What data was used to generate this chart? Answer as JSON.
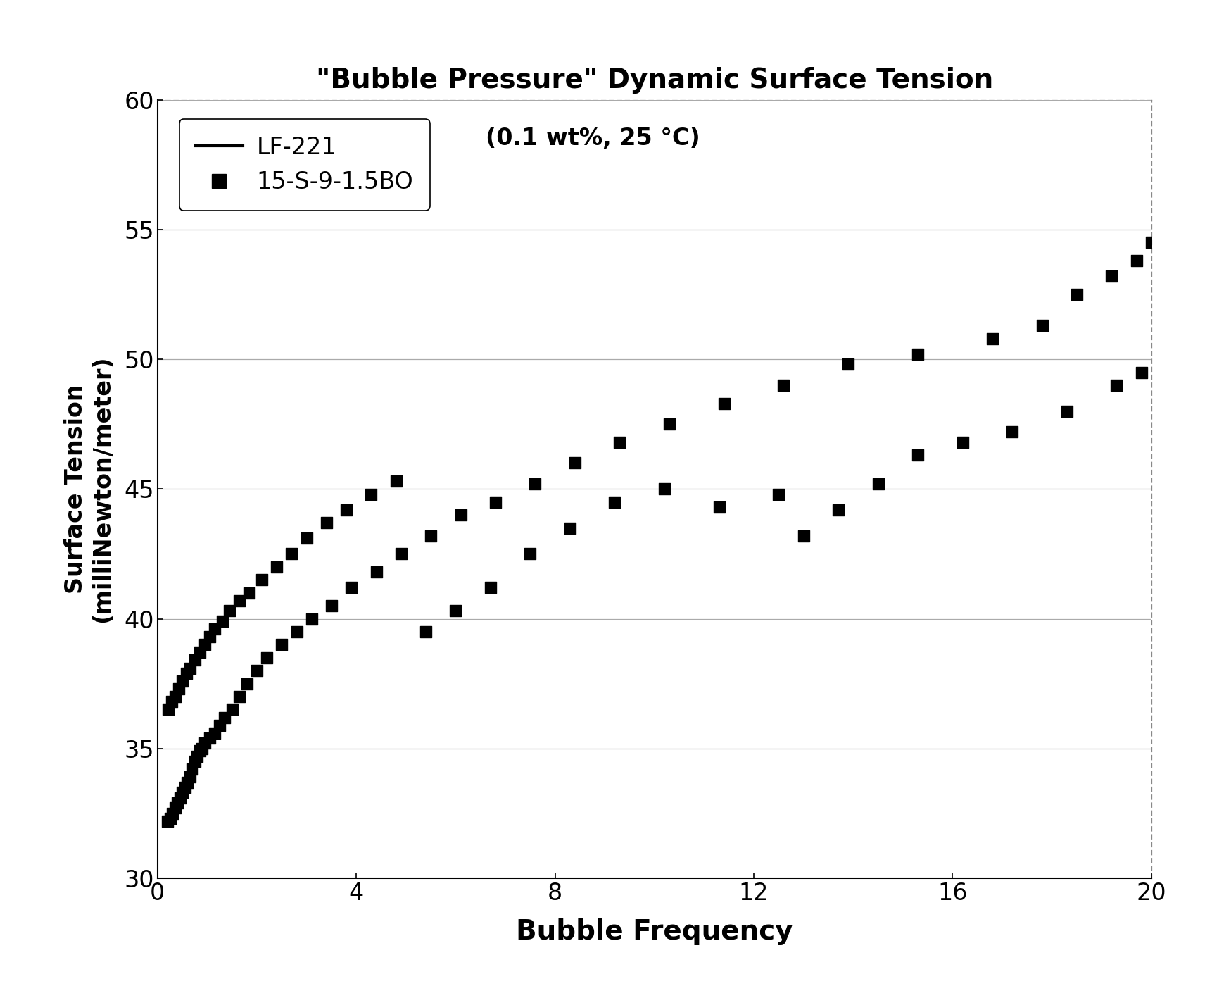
{
  "title": "\"Bubble Pressure\" Dynamic Surface Tension",
  "subtitle": "(0.1 wt%, 25 °C)",
  "xlabel": "Bubble Frequency",
  "ylabel": "Surface Tension\n(milliNewton/meter)",
  "xlim": [
    0,
    20
  ],
  "ylim": [
    30,
    60
  ],
  "yticks": [
    30,
    35,
    40,
    45,
    50,
    55,
    60
  ],
  "xticks": [
    0,
    4,
    8,
    12,
    16,
    20
  ],
  "series1_label": "LF-221",
  "series2_label": "15-S-9-1.5BO",
  "lf221_x": [
    0.2,
    0.25,
    0.3,
    0.35,
    0.4,
    0.45,
    0.5,
    0.55,
    0.6,
    0.65,
    0.7,
    0.75,
    0.8,
    0.85,
    0.9,
    0.95,
    1.05,
    1.15,
    1.25,
    1.35,
    1.5,
    1.65,
    1.8,
    2.0,
    2.2,
    2.5,
    2.8,
    3.1,
    3.5,
    3.9,
    4.4,
    4.9,
    5.5,
    6.1,
    6.8,
    7.6,
    8.4,
    9.3,
    10.3,
    11.4,
    12.6,
    13.9,
    15.3,
    16.8,
    17.8,
    18.5,
    19.2,
    19.7,
    20.0
  ],
  "lf221_y": [
    32.2,
    32.3,
    32.5,
    32.7,
    32.9,
    33.1,
    33.3,
    33.5,
    33.7,
    33.9,
    34.2,
    34.5,
    34.7,
    34.9,
    35.0,
    35.2,
    35.4,
    35.6,
    35.9,
    36.2,
    36.5,
    37.0,
    37.5,
    38.0,
    38.5,
    39.0,
    39.5,
    40.0,
    40.5,
    41.2,
    41.8,
    42.5,
    43.2,
    44.0,
    44.5,
    45.2,
    46.0,
    46.8,
    47.5,
    48.3,
    49.0,
    49.8,
    50.2,
    50.8,
    51.3,
    52.5,
    53.2,
    53.8,
    54.5
  ],
  "s9bo_x": [
    0.22,
    0.28,
    0.35,
    0.42,
    0.5,
    0.58,
    0.66,
    0.75,
    0.85,
    0.95,
    1.05,
    1.15,
    1.3,
    1.45,
    1.65,
    1.85,
    2.1,
    2.4,
    2.7,
    3.0,
    3.4,
    3.8,
    4.3,
    4.8,
    5.4,
    6.0,
    6.7,
    7.5,
    8.3,
    9.2,
    10.2,
    11.3,
    12.5,
    13.0,
    13.7,
    14.5,
    15.3,
    16.2,
    17.2,
    18.3,
    19.3,
    19.8
  ],
  "s9bo_y": [
    36.5,
    36.8,
    37.0,
    37.3,
    37.6,
    37.9,
    38.1,
    38.4,
    38.7,
    39.0,
    39.3,
    39.6,
    39.9,
    40.3,
    40.7,
    41.0,
    41.5,
    42.0,
    42.5,
    43.1,
    43.7,
    44.2,
    44.8,
    45.3,
    39.5,
    40.3,
    41.2,
    42.5,
    43.5,
    44.5,
    45.0,
    44.3,
    44.8,
    43.2,
    44.2,
    45.2,
    46.3,
    46.8,
    47.2,
    48.0,
    49.0,
    49.5
  ]
}
